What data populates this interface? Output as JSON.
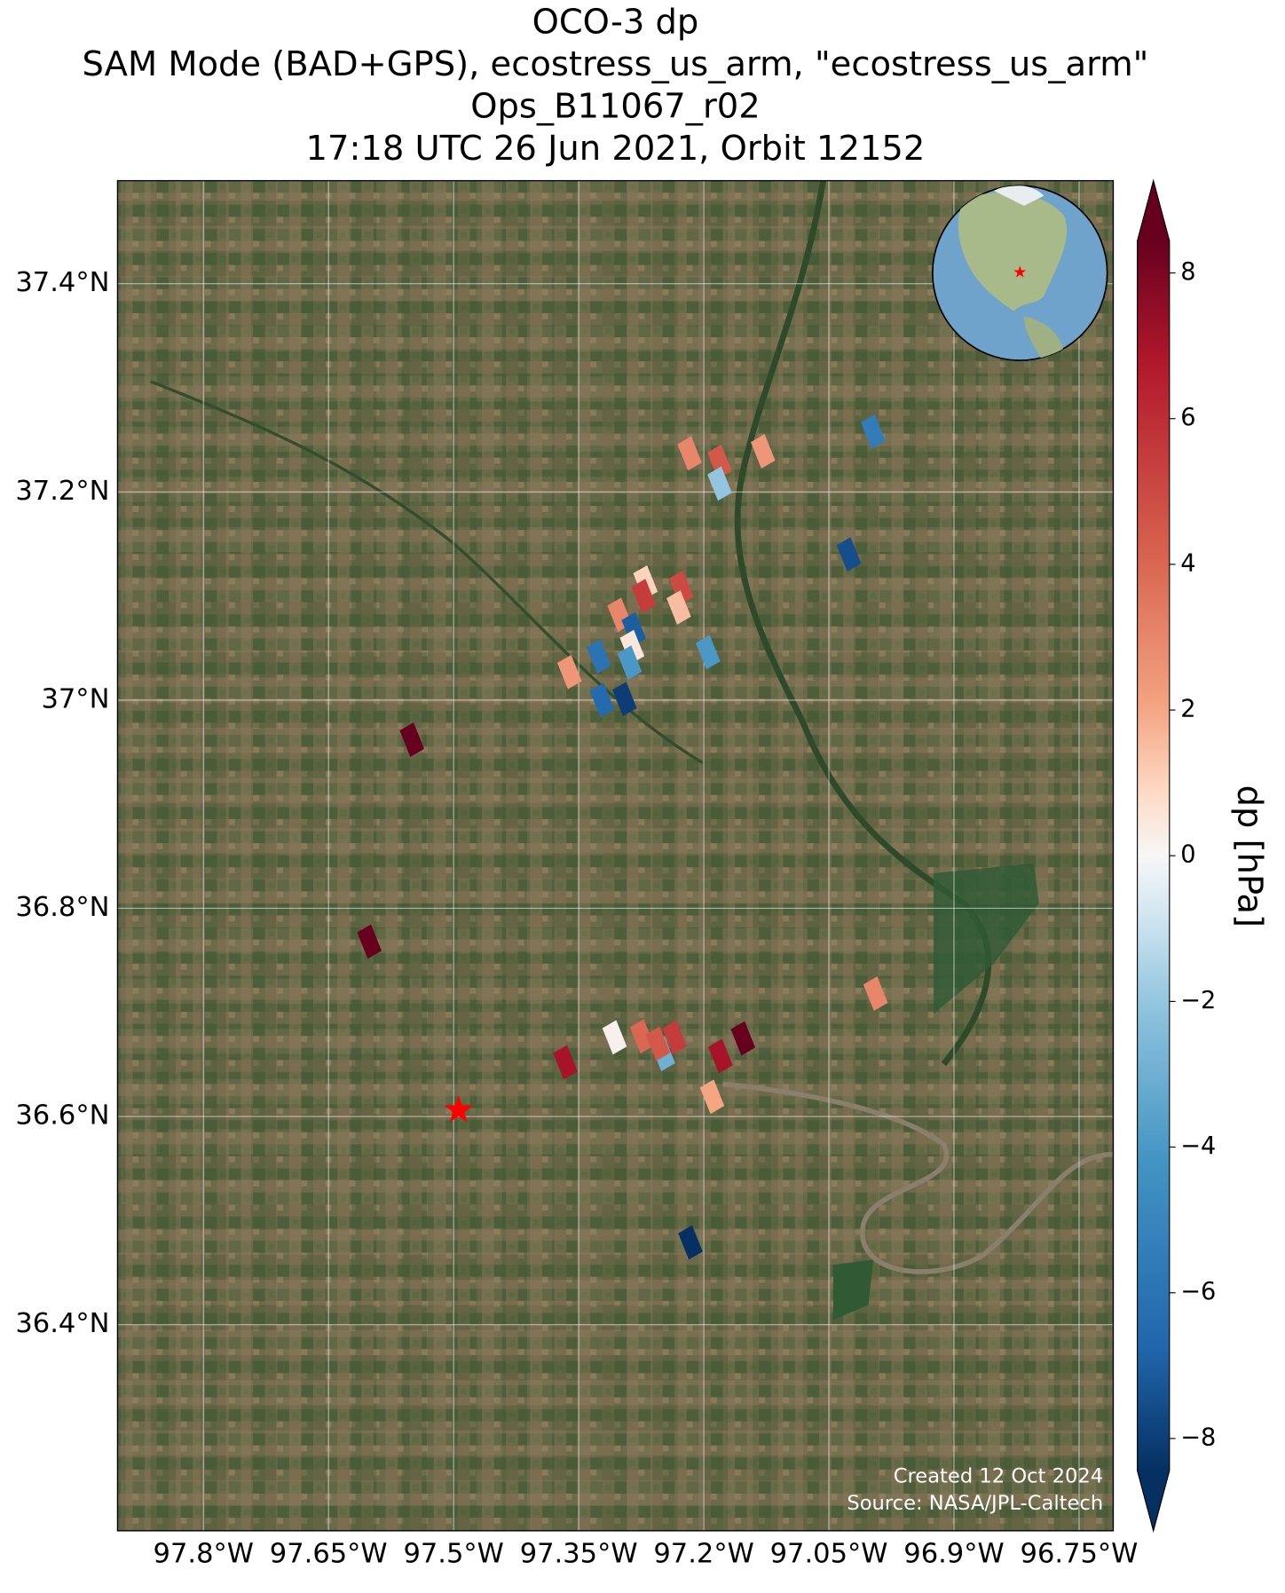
{
  "chart_data": {
    "type": "map",
    "title": [
      "OCO-3 dp",
      "SAM Mode (BAD+GPS), ecostress_us_arm, \"ecostress_us_arm\"",
      "Ops_B11067_r02",
      "17:18 UTC 26 Jun 2021, Orbit 12152"
    ],
    "xlim": [
      -97.903,
      -96.709
    ],
    "ylim": [
      36.202,
      37.499
    ],
    "xticks": [
      {
        "value": -97.8,
        "label": "97.8°W"
      },
      {
        "value": -97.65,
        "label": "97.65°W"
      },
      {
        "value": -97.5,
        "label": "97.5°W"
      },
      {
        "value": -97.35,
        "label": "97.35°W"
      },
      {
        "value": -97.2,
        "label": "97.2°W"
      },
      {
        "value": -97.05,
        "label": "97.05°W"
      },
      {
        "value": -96.9,
        "label": "96.9°W"
      },
      {
        "value": -96.75,
        "label": "96.75°W"
      }
    ],
    "yticks": [
      {
        "value": 37.4,
        "label": "37.4°N"
      },
      {
        "value": 37.2,
        "label": "37.2°N"
      },
      {
        "value": 37,
        "label": "37°N"
      },
      {
        "value": 36.8,
        "label": "36.8°N"
      },
      {
        "value": 36.6,
        "label": "36.6°N"
      },
      {
        "value": 36.4,
        "label": "36.4°N"
      }
    ],
    "grid": true,
    "colormap": "RdBu_r",
    "clim": [
      -8.44,
      8.44
    ],
    "cticks": [
      8,
      6,
      4,
      2,
      0,
      {
        "value": -2,
        "label": "−2"
      },
      {
        "value": -4,
        "label": "−4"
      },
      {
        "value": -6,
        "label": "−6"
      },
      {
        "value": -8,
        "label": "−8"
      }
    ],
    "colorbar_label": "dp [hPa]",
    "lon": [
      -97.217,
      -97.181,
      -97.181,
      -97.129,
      -96.997,
      -97.026,
      -97.27,
      -97.272,
      -97.227,
      -97.23,
      -97.301,
      -97.284,
      -97.286,
      -97.289,
      -97.326,
      -97.361,
      -97.195,
      -97.322,
      -97.295,
      -97.55,
      -97.601,
      -96.994,
      -97.307,
      -97.274,
      -97.249,
      -97.255,
      -97.235,
      -97.366,
      -97.18,
      -97.153,
      -97.19,
      -97.216
    ],
    "lat": [
      37.237,
      37.229,
      37.208,
      37.239,
      37.258,
      37.14,
      37.113,
      37.1,
      37.108,
      37.089,
      37.082,
      37.068,
      37.051,
      37.036,
      37.042,
      37.027,
      37.046,
      37.0,
      37.001,
      36.962,
      36.768,
      36.718,
      36.676,
      36.677,
      36.66,
      36.67,
      36.676,
      36.652,
      36.658,
      36.675,
      36.619,
      36.479
    ],
    "values": [
      3,
      4.5,
      -2,
      2.5,
      -5.5,
      -7.5,
      1,
      5.5,
      5,
      1.5,
      3,
      -7,
      0.5,
      -4,
      -6,
      2.5,
      -4,
      -6.5,
      -8,
      8.5,
      8.5,
      3,
      0.2,
      4,
      -3,
      4.5,
      5.5,
      7,
      7,
      8.5,
      2,
      -8.5
    ],
    "site": {
      "lon": -97.494,
      "lat": 36.606,
      "color": "#ff0000"
    },
    "credits": [
      "Created 12 Oct 2024",
      "Source: NASA/JPL-Caltech"
    ]
  }
}
